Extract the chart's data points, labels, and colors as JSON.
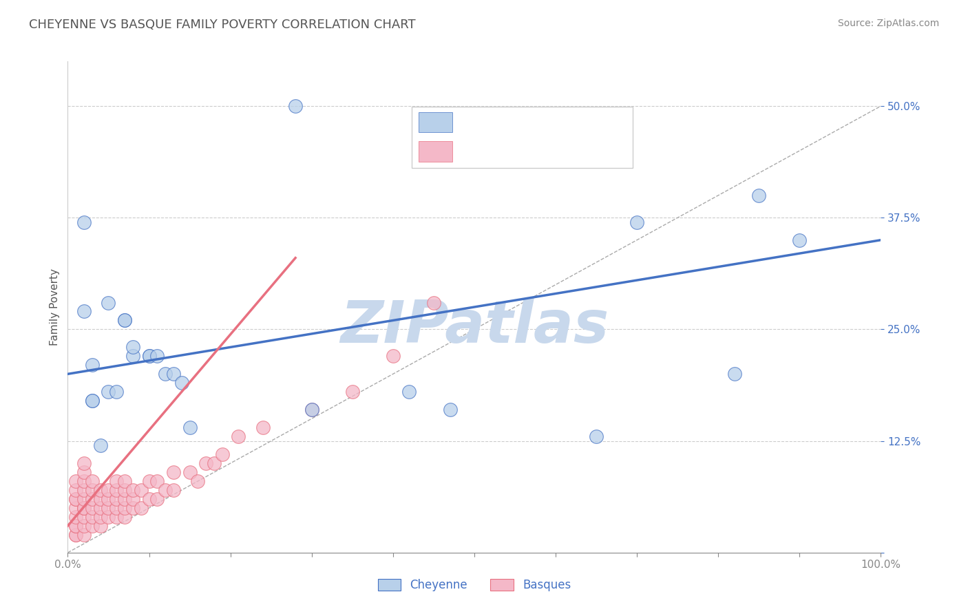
{
  "title": "CHEYENNE VS BASQUE FAMILY POVERTY CORRELATION CHART",
  "source_text": "Source: ZipAtlas.com",
  "ylabel": "Family Poverty",
  "xlim": [
    0,
    100
  ],
  "ylim": [
    0,
    55
  ],
  "ytick_positions": [
    0,
    12.5,
    25,
    37.5,
    50
  ],
  "ytick_labels": [
    "",
    "12.5%",
    "25.0%",
    "37.5%",
    "50.0%"
  ],
  "cheyenne_color": "#b8d0ea",
  "basques_color": "#f4b8c8",
  "cheyenne_line_color": "#4472C4",
  "basques_line_color": "#E87080",
  "watermark_color": "#c8d8ec",
  "grid_color": "#cccccc",
  "title_color": "#555555",
  "axis_label_color": "#4472C4",
  "cheyenne_x": [
    28,
    2,
    2,
    5,
    3,
    7,
    7,
    8,
    8,
    10,
    10,
    11,
    12,
    13,
    3,
    3,
    5,
    6,
    14,
    15,
    65,
    70,
    85,
    82,
    42,
    47,
    30,
    4,
    90
  ],
  "cheyenne_y": [
    50,
    37,
    27,
    28,
    21,
    26,
    26,
    22,
    23,
    22,
    22,
    22,
    20,
    20,
    17,
    17,
    18,
    18,
    19,
    14,
    13,
    37,
    40,
    20,
    18,
    16,
    16,
    12,
    35
  ],
  "basques_x": [
    1,
    1,
    1,
    1,
    1,
    1,
    1,
    1,
    1,
    1,
    2,
    2,
    2,
    2,
    2,
    2,
    2,
    2,
    2,
    2,
    3,
    3,
    3,
    3,
    3,
    3,
    4,
    4,
    4,
    4,
    4,
    5,
    5,
    5,
    5,
    6,
    6,
    6,
    6,
    6,
    7,
    7,
    7,
    7,
    7,
    8,
    8,
    8,
    9,
    9,
    10,
    10,
    11,
    11,
    12,
    13,
    13,
    15,
    16,
    17,
    18,
    19,
    21,
    24,
    30,
    35,
    40,
    45
  ],
  "basques_y": [
    2,
    2,
    3,
    3,
    4,
    5,
    6,
    6,
    7,
    8,
    2,
    3,
    4,
    5,
    5,
    6,
    7,
    8,
    9,
    10,
    3,
    4,
    5,
    6,
    7,
    8,
    3,
    4,
    5,
    6,
    7,
    4,
    5,
    6,
    7,
    4,
    5,
    6,
    7,
    8,
    4,
    5,
    6,
    7,
    8,
    5,
    6,
    7,
    5,
    7,
    6,
    8,
    6,
    8,
    7,
    7,
    9,
    9,
    8,
    10,
    10,
    11,
    13,
    14,
    16,
    18,
    22,
    28
  ],
  "cheyenne_trend_x": [
    0,
    100
  ],
  "cheyenne_trend_y": [
    20,
    35
  ],
  "basques_trend_x": [
    0,
    28
  ],
  "basques_trend_y": [
    3,
    33
  ],
  "ref_line_x": [
    0,
    100
  ],
  "ref_line_y": [
    0,
    50
  ]
}
